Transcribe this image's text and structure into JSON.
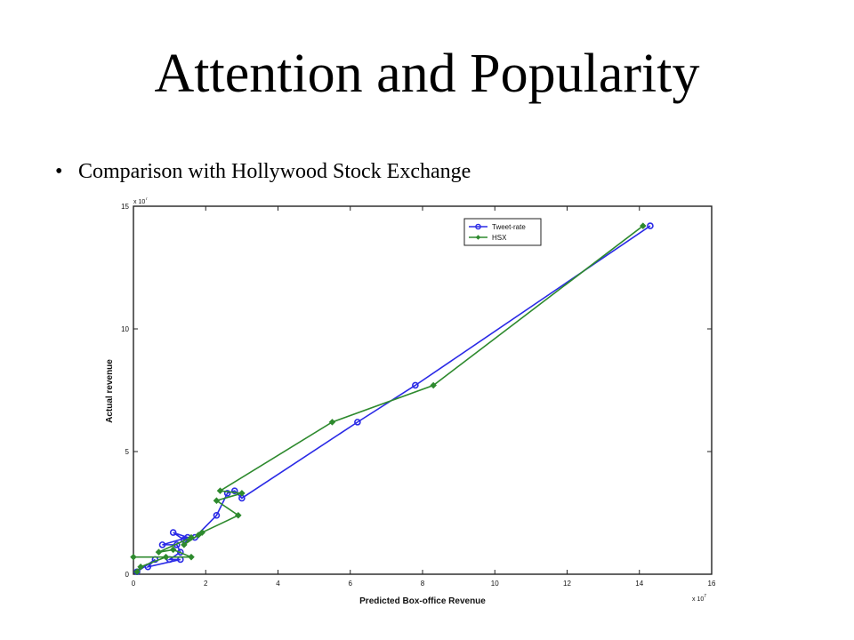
{
  "slide": {
    "title": "Attention and Popularity",
    "bullet_mark": "•",
    "bullet": "Comparison with Hollywood Stock Exchange"
  },
  "chart_data": {
    "type": "line",
    "title": "",
    "xlabel": "Predicted Box-office Revenue",
    "ylabel": "Actual revenue",
    "x_multiplier": "x 10",
    "x_multiplier_exp": "7",
    "y_multiplier": "x 10",
    "y_multiplier_exp": "7",
    "xlim": [
      0,
      16
    ],
    "ylim": [
      0,
      15
    ],
    "xticks": [
      0,
      2,
      4,
      6,
      8,
      10,
      12,
      14,
      16
    ],
    "yticks": [
      0,
      5,
      10,
      15
    ],
    "grid": false,
    "legend_position": "top-right",
    "series": [
      {
        "name": "Tweet-rate",
        "color": "#2a2ae6",
        "marker": "circle",
        "points": [
          [
            14.3,
            14.2
          ],
          [
            7.8,
            7.7
          ],
          [
            6.2,
            6.2
          ],
          [
            3.0,
            3.1
          ],
          [
            2.8,
            3.4
          ],
          [
            2.6,
            3.3
          ],
          [
            2.3,
            2.4
          ],
          [
            1.7,
            1.5
          ],
          [
            1.4,
            1.4
          ],
          [
            1.1,
            1.7
          ],
          [
            1.5,
            1.5
          ],
          [
            0.8,
            1.2
          ],
          [
            1.2,
            1.2
          ],
          [
            1.3,
            0.9
          ],
          [
            1.0,
            0.6
          ],
          [
            1.3,
            0.6
          ],
          [
            0.4,
            0.3
          ],
          [
            0.6,
            0.6
          ],
          [
            0.1,
            0.1
          ]
        ]
      },
      {
        "name": "HSX",
        "color": "#2e8a2e",
        "marker": "diamond",
        "points": [
          [
            14.1,
            14.2
          ],
          [
            8.3,
            7.7
          ],
          [
            5.5,
            6.2
          ],
          [
            2.4,
            3.4
          ],
          [
            3.0,
            3.3
          ],
          [
            2.3,
            3.0
          ],
          [
            2.9,
            2.4
          ],
          [
            1.9,
            1.7
          ],
          [
            1.8,
            1.6
          ],
          [
            1.4,
            1.2
          ],
          [
            1.6,
            1.5
          ],
          [
            0.7,
            0.9
          ],
          [
            1.1,
            1.0
          ],
          [
            1.6,
            0.7
          ],
          [
            0.0,
            0.7
          ],
          [
            0.9,
            0.7
          ],
          [
            0.2,
            0.3
          ],
          [
            0.1,
            0.1
          ]
        ]
      }
    ]
  }
}
